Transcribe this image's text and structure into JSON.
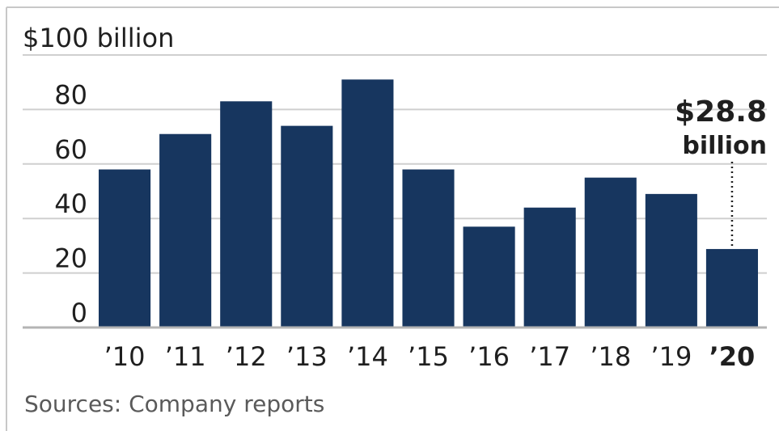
{
  "chart_data": {
    "type": "bar",
    "title": "",
    "ylabel": "$100 billion",
    "xlabel": "",
    "categories": [
      "’10",
      "’11",
      "’12",
      "’13",
      "’14",
      "’15",
      "’16",
      "’17",
      "’18",
      "’19",
      "’20"
    ],
    "values": [
      58,
      71,
      83,
      74,
      91,
      58,
      37,
      44,
      55,
      49,
      28.8
    ],
    "ylim": [
      0,
      100
    ],
    "yticks": [
      0,
      20,
      40,
      60,
      80
    ],
    "ytick_labels": [
      "0",
      "20",
      "40",
      "60",
      "80"
    ],
    "grid": true,
    "bar_color": "#17365f",
    "highlight_index": 10,
    "annotation": {
      "value": "$28.8",
      "unit": "billion"
    }
  },
  "source": "Sources: Company reports"
}
